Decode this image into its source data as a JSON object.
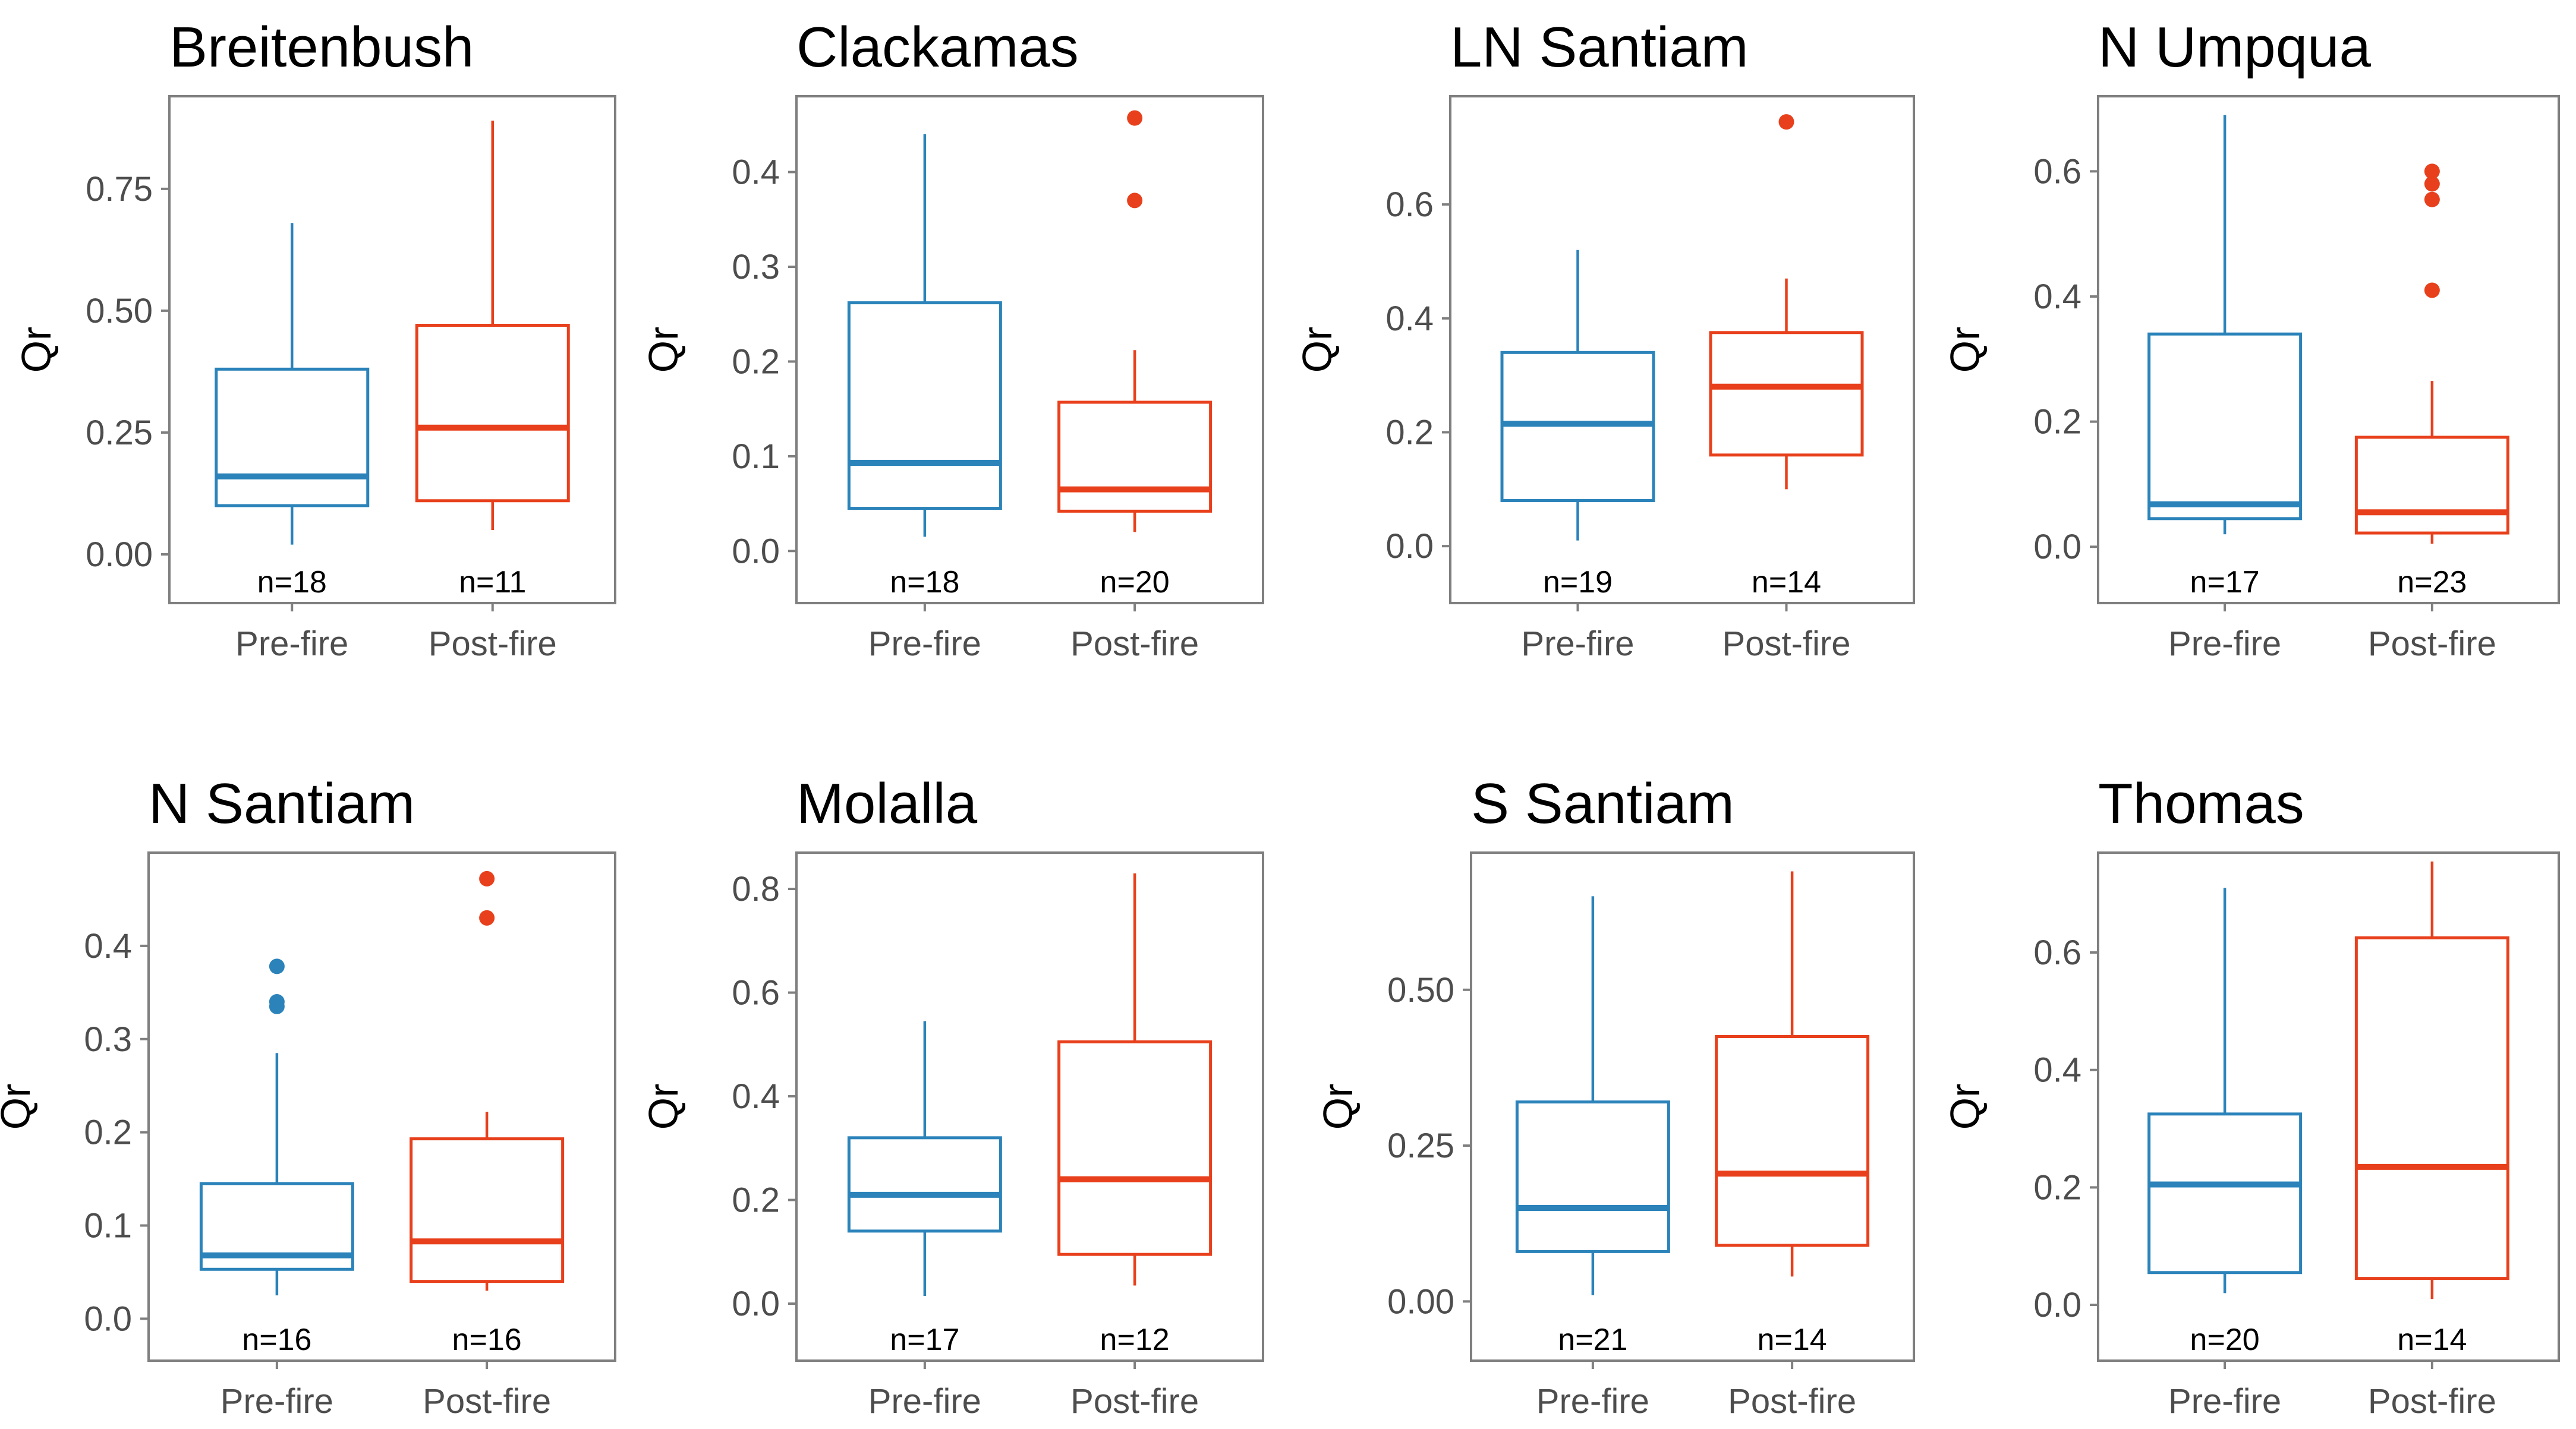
{
  "colors": {
    "pre": "#2b83ba",
    "post": "#e8401c",
    "frame": "#7f7f7f",
    "tick_text": "#4d4d4d"
  },
  "chart_data": [
    {
      "type": "boxplot",
      "title": "Breitenbush",
      "ylabel": "Qr",
      "categories": [
        "Pre-fire",
        "Post-fire"
      ],
      "ylim": [
        -0.1,
        0.94
      ],
      "yticks": [
        0,
        0.25,
        0.5,
        0.75
      ],
      "ytick_labels": [
        "0.00",
        "0.25",
        "0.50",
        "0.75"
      ],
      "boxes": [
        {
          "group": "Pre-fire",
          "n_label": "n=18",
          "whisker_low": 0.02,
          "q1": 0.1,
          "median": 0.16,
          "q3": 0.38,
          "whisker_high": 0.68,
          "outliers": []
        },
        {
          "group": "Post-fire",
          "n_label": "n=11",
          "whisker_low": 0.05,
          "q1": 0.11,
          "median": 0.26,
          "q3": 0.47,
          "whisker_high": 0.89,
          "outliers": []
        }
      ]
    },
    {
      "type": "boxplot",
      "title": "Clackamas",
      "ylabel": "Qr",
      "categories": [
        "Pre-fire",
        "Post-fire"
      ],
      "ylim": [
        -0.055,
        0.48
      ],
      "yticks": [
        0,
        0.1,
        0.2,
        0.3,
        0.4
      ],
      "ytick_labels": [
        "0.0",
        "0.1",
        "0.2",
        "0.3",
        "0.4"
      ],
      "boxes": [
        {
          "group": "Pre-fire",
          "n_label": "n=18",
          "whisker_low": 0.015,
          "q1": 0.045,
          "median": 0.093,
          "q3": 0.262,
          "whisker_high": 0.44,
          "outliers": []
        },
        {
          "group": "Post-fire",
          "n_label": "n=20",
          "whisker_low": 0.02,
          "q1": 0.042,
          "median": 0.065,
          "q3": 0.157,
          "whisker_high": 0.212,
          "outliers": [
            0.457,
            0.37
          ]
        }
      ]
    },
    {
      "type": "boxplot",
      "title": "LN Santiam",
      "ylabel": "Qr",
      "categories": [
        "Pre-fire",
        "Post-fire"
      ],
      "ylim": [
        -0.1,
        0.79
      ],
      "yticks": [
        0,
        0.2,
        0.4,
        0.6
      ],
      "ytick_labels": [
        "0.0",
        "0.2",
        "0.4",
        "0.6"
      ],
      "boxes": [
        {
          "group": "Pre-fire",
          "n_label": "n=19",
          "whisker_low": 0.01,
          "q1": 0.08,
          "median": 0.215,
          "q3": 0.34,
          "whisker_high": 0.52,
          "outliers": []
        },
        {
          "group": "Post-fire",
          "n_label": "n=14",
          "whisker_low": 0.1,
          "q1": 0.16,
          "median": 0.28,
          "q3": 0.375,
          "whisker_high": 0.47,
          "outliers": [
            0.745
          ]
        }
      ]
    },
    {
      "type": "boxplot",
      "title": "N Umpqua",
      "ylabel": "Qr",
      "categories": [
        "Pre-fire",
        "Post-fire"
      ],
      "ylim": [
        -0.09,
        0.72
      ],
      "yticks": [
        0,
        0.2,
        0.4,
        0.6
      ],
      "ytick_labels": [
        "0.0",
        "0.2",
        "0.4",
        "0.6"
      ],
      "boxes": [
        {
          "group": "Pre-fire",
          "n_label": "n=17",
          "whisker_low": 0.02,
          "q1": 0.045,
          "median": 0.068,
          "q3": 0.34,
          "whisker_high": 0.69,
          "outliers": []
        },
        {
          "group": "Post-fire",
          "n_label": "n=23",
          "whisker_low": 0.005,
          "q1": 0.022,
          "median": 0.055,
          "q3": 0.175,
          "whisker_high": 0.265,
          "outliers": [
            0.6,
            0.58,
            0.555,
            0.41
          ]
        }
      ]
    },
    {
      "type": "boxplot",
      "title": "N Santiam",
      "ylabel": "Qr",
      "categories": [
        "Pre-fire",
        "Post-fire"
      ],
      "ylim": [
        -0.045,
        0.5
      ],
      "yticks": [
        0,
        0.1,
        0.2,
        0.3,
        0.4
      ],
      "ytick_labels": [
        "0.0",
        "0.1",
        "0.2",
        "0.3",
        "0.4"
      ],
      "boxes": [
        {
          "group": "Pre-fire",
          "n_label": "n=16",
          "whisker_low": 0.025,
          "q1": 0.053,
          "median": 0.068,
          "q3": 0.145,
          "whisker_high": 0.285,
          "outliers": [
            0.378,
            0.34,
            0.335
          ]
        },
        {
          "group": "Post-fire",
          "n_label": "n=16",
          "whisker_low": 0.03,
          "q1": 0.04,
          "median": 0.083,
          "q3": 0.193,
          "whisker_high": 0.222,
          "outliers": [
            0.472,
            0.43
          ]
        }
      ]
    },
    {
      "type": "boxplot",
      "title": "Molalla",
      "ylabel": "Qr",
      "categories": [
        "Pre-fire",
        "Post-fire"
      ],
      "ylim": [
        -0.11,
        0.87
      ],
      "yticks": [
        0,
        0.2,
        0.4,
        0.6,
        0.8
      ],
      "ytick_labels": [
        "0.0",
        "0.2",
        "0.4",
        "0.6",
        "0.8"
      ],
      "boxes": [
        {
          "group": "Pre-fire",
          "n_label": "n=17",
          "whisker_low": 0.015,
          "q1": 0.14,
          "median": 0.21,
          "q3": 0.32,
          "whisker_high": 0.545,
          "outliers": []
        },
        {
          "group": "Post-fire",
          "n_label": "n=12",
          "whisker_low": 0.035,
          "q1": 0.095,
          "median": 0.24,
          "q3": 0.505,
          "whisker_high": 0.83,
          "outliers": []
        }
      ]
    },
    {
      "type": "boxplot",
      "title": "S Santiam",
      "ylabel": "Qr",
      "categories": [
        "Pre-fire",
        "Post-fire"
      ],
      "ylim": [
        -0.095,
        0.72
      ],
      "yticks": [
        0,
        0.25,
        0.5
      ],
      "ytick_labels": [
        "0.00",
        "0.25",
        "0.50"
      ],
      "boxes": [
        {
          "group": "Pre-fire",
          "n_label": "n=21",
          "whisker_low": 0.01,
          "q1": 0.08,
          "median": 0.15,
          "q3": 0.32,
          "whisker_high": 0.65,
          "outliers": []
        },
        {
          "group": "Post-fire",
          "n_label": "n=14",
          "whisker_low": 0.04,
          "q1": 0.09,
          "median": 0.205,
          "q3": 0.425,
          "whisker_high": 0.69,
          "outliers": []
        }
      ]
    },
    {
      "type": "boxplot",
      "title": "Thomas",
      "ylabel": "Qr",
      "categories": [
        "Pre-fire",
        "Post-fire"
      ],
      "ylim": [
        -0.095,
        0.77
      ],
      "yticks": [
        0,
        0.2,
        0.4,
        0.6
      ],
      "ytick_labels": [
        "0.0",
        "0.2",
        "0.4",
        "0.6"
      ],
      "boxes": [
        {
          "group": "Pre-fire",
          "n_label": "n=20",
          "whisker_low": 0.02,
          "q1": 0.055,
          "median": 0.205,
          "q3": 0.325,
          "whisker_high": 0.71,
          "outliers": []
        },
        {
          "group": "Post-fire",
          "n_label": "n=14",
          "whisker_low": 0.01,
          "q1": 0.045,
          "median": 0.235,
          "q3": 0.625,
          "whisker_high": 0.755,
          "outliers": []
        }
      ]
    }
  ]
}
